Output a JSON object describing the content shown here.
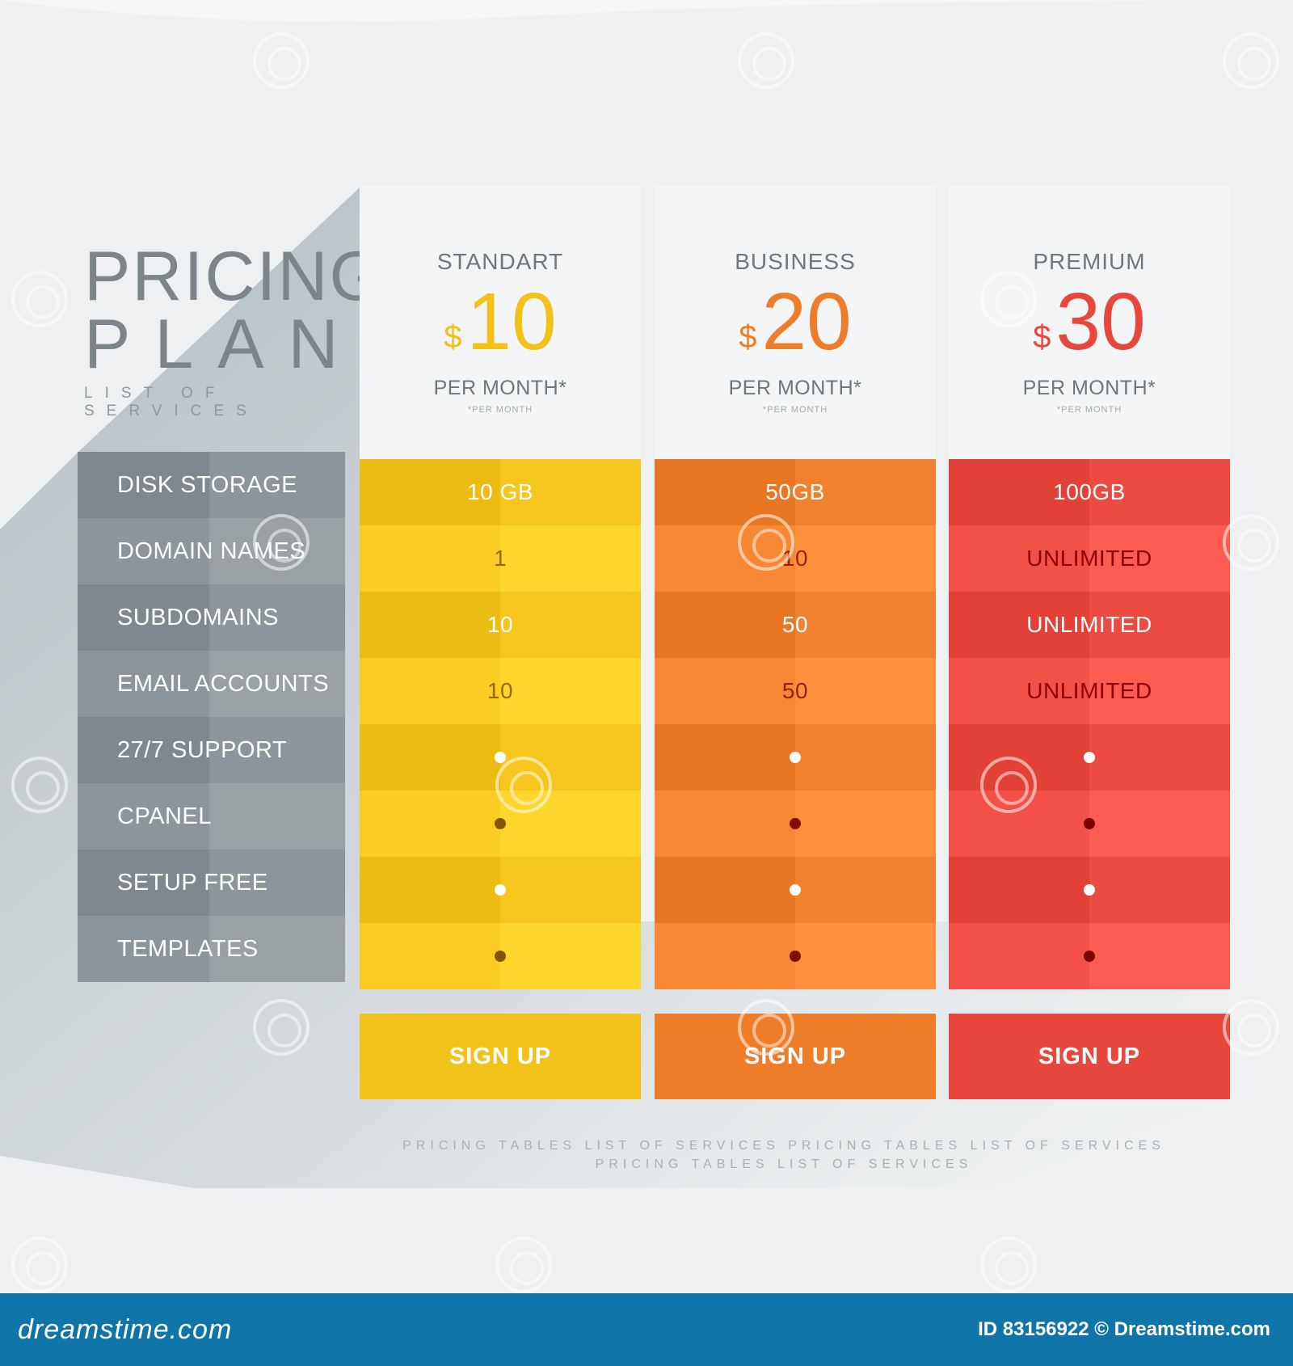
{
  "title": {
    "line1": "PRICING",
    "line2": "PLANE",
    "subtitle": "LIST OF SERVICES"
  },
  "features": [
    "DISK STORAGE",
    "DOMAIN NAMES",
    "SUBDOMAINS",
    "EMAIL ACCOUNTS",
    "27/7 SUPPORT",
    "CPANEL",
    "SETUP FREE",
    "TEMPLATES"
  ],
  "plans": [
    {
      "name": "STANDART",
      "currency": "$",
      "amount": "10",
      "period": "PER MONTH*",
      "note": "*PER MONTH",
      "accent": "#f2c21a",
      "values": [
        "10 GB",
        "1",
        "10",
        "10"
      ],
      "signup_label": "SIGN UP"
    },
    {
      "name": "BUSINESS",
      "currency": "$",
      "amount": "20",
      "period": "PER MONTH*",
      "note": "*PER MONTH",
      "accent": "#ee7d2a",
      "values": [
        "50GB",
        "10",
        "50",
        "50"
      ],
      "signup_label": "SIGN UP"
    },
    {
      "name": "PREMIUM",
      "currency": "$",
      "amount": "30",
      "period": "PER MONTH*",
      "note": "*PER MONTH",
      "accent": "#e8473e",
      "values": [
        "100GB",
        "UNLIMITED",
        "UNLIMITED",
        "UNLIMITED"
      ],
      "signup_label": "SIGN UP"
    }
  ],
  "footer": {
    "line1": "PRICING TABLES  LIST OF SERVICES PRICING TABLES  LIST OF SERVICES",
    "line2": "PRICING TABLES  LIST OF SERVICES"
  },
  "bottom_bar": {
    "brand": "dreamstime.com",
    "stock_id": "ID 83156922 © Dreamstime.com"
  }
}
